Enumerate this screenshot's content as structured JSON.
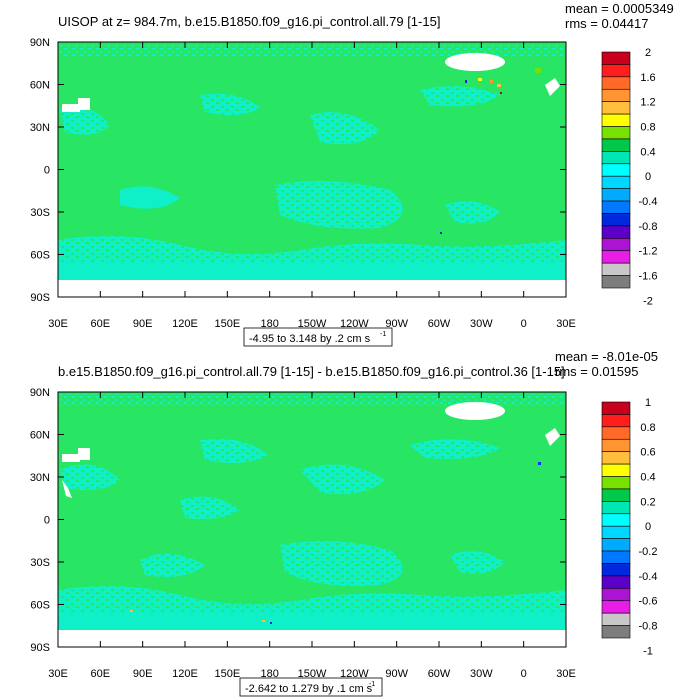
{
  "chart_data": [
    {
      "type": "heatmap",
      "title": "UISOP at z= 984.7m, b.e15.B1850.f09_g16.pi_control.all.79 [1-15]",
      "stats": {
        "mean": "mean = 0.0005349",
        "rms": "rms = 0.04417"
      },
      "x_ticks": [
        "30E",
        "60E",
        "90E",
        "120E",
        "150E",
        "180",
        "150W",
        "120W",
        "90W",
        "60W",
        "30W",
        "0",
        "30E"
      ],
      "y_ticks": [
        "90N",
        "60N",
        "30N",
        "0",
        "30S",
        "60S",
        "90S"
      ],
      "range_label": "-4.95 to 3.148 by .2 cm s",
      "range_sup": "-1",
      "colorbar": {
        "labels": [
          "2",
          "1.6",
          "1.2",
          "0.8",
          "0.4",
          "0",
          "-0.4",
          "-0.8",
          "-1.2",
          "-1.6",
          "-2"
        ],
        "colors": [
          "#c8001e",
          "#ff1e1e",
          "#ff6a28",
          "#ff9632",
          "#ffbe3c",
          "#ffff00",
          "#78e100",
          "#00c84b",
          "#00e6b4",
          "#00ffff",
          "#00d7ff",
          "#00aaff",
          "#0078ff",
          "#0028dc",
          "#5a00c8",
          "#aa14d2",
          "#e61ee6",
          "#c8c8c8",
          "#7d7d7d"
        ]
      },
      "fill_colors": {
        "ocean_high": "#28e664",
        "ocean_low": "#0ff0c8",
        "no_data": "#ffffff"
      }
    },
    {
      "type": "heatmap",
      "title": "b.e15.B1850.f09_g16.pi_control.all.79 [1-15] - b.e15.B1850.f09_g16.pi_control.36 [1-15]",
      "stats": {
        "mean": "mean = -8.01e-05",
        "rms": "rms = 0.01595"
      },
      "x_ticks": [
        "30E",
        "60E",
        "90E",
        "120E",
        "150E",
        "180",
        "150W",
        "120W",
        "90W",
        "60W",
        "30W",
        "0",
        "30E"
      ],
      "y_ticks": [
        "90N",
        "60N",
        "30N",
        "0",
        "30S",
        "60S",
        "90S"
      ],
      "range_label": "-2.642 to 1.279 by .1 cm s",
      "range_sup": "-1",
      "colorbar": {
        "labels": [
          "1",
          "0.8",
          "0.6",
          "0.4",
          "0.2",
          "0",
          "-0.2",
          "-0.4",
          "-0.6",
          "-0.8",
          "-1"
        ],
        "colors": [
          "#c8001e",
          "#ff1e1e",
          "#ff6a28",
          "#ff9632",
          "#ffbe3c",
          "#ffff00",
          "#78e100",
          "#00c84b",
          "#00e6b4",
          "#00ffff",
          "#00d7ff",
          "#00aaff",
          "#0078ff",
          "#0028dc",
          "#5a00c8",
          "#aa14d2",
          "#e61ee6",
          "#c8c8c8",
          "#7d7d7d"
        ]
      },
      "fill_colors": {
        "ocean_high": "#28e664",
        "ocean_low": "#0ff0c8",
        "no_data": "#ffffff"
      }
    }
  ]
}
